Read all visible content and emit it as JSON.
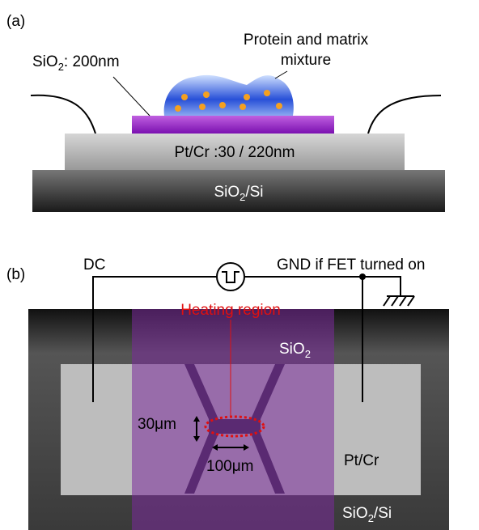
{
  "panel_a": {
    "label": "(a)",
    "mixture_label": [
      "Protein and matrix",
      "mixture"
    ],
    "oxide_label": {
      "text": "SiO",
      "sub": "2",
      "rest": ": 200nm"
    },
    "metal_label": "Pt/Cr :30 / 220nm",
    "substrate_label": {
      "text": "SiO",
      "sub": "2",
      "rest": "/Si"
    }
  },
  "panel_b": {
    "label": "(b)",
    "dc_label": "DC",
    "gnd_label": "GND if FET turned on",
    "heating_label": "Heating region",
    "oxide_label": {
      "text": "SiO",
      "sub": "2"
    },
    "width_label": "30μm",
    "length_label": "100μm",
    "metal_label": "Pt/Cr",
    "substrate_label": {
      "text": "SiO",
      "sub": "2",
      "rest": "/Si"
    }
  }
}
